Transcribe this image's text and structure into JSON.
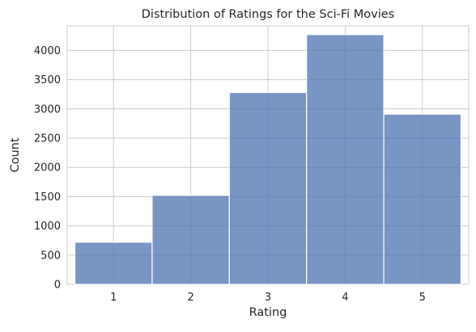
{
  "chart_data": {
    "type": "bar",
    "title": "Distribution of Ratings for the Sci-Fi Movies",
    "xlabel": "Rating",
    "ylabel": "Count",
    "categories": [
      "1",
      "2",
      "3",
      "4",
      "5"
    ],
    "values": [
      720,
      1520,
      3280,
      4270,
      2910
    ],
    "xlim": [
      0.4,
      5.6
    ],
    "ylim": [
      0,
      4420
    ],
    "yticks": [
      0,
      500,
      1000,
      1500,
      2000,
      2500,
      3000,
      3500,
      4000
    ],
    "grid": true,
    "bar_color": "#4c72b0",
    "bar_edge_color": "#ffffff"
  }
}
